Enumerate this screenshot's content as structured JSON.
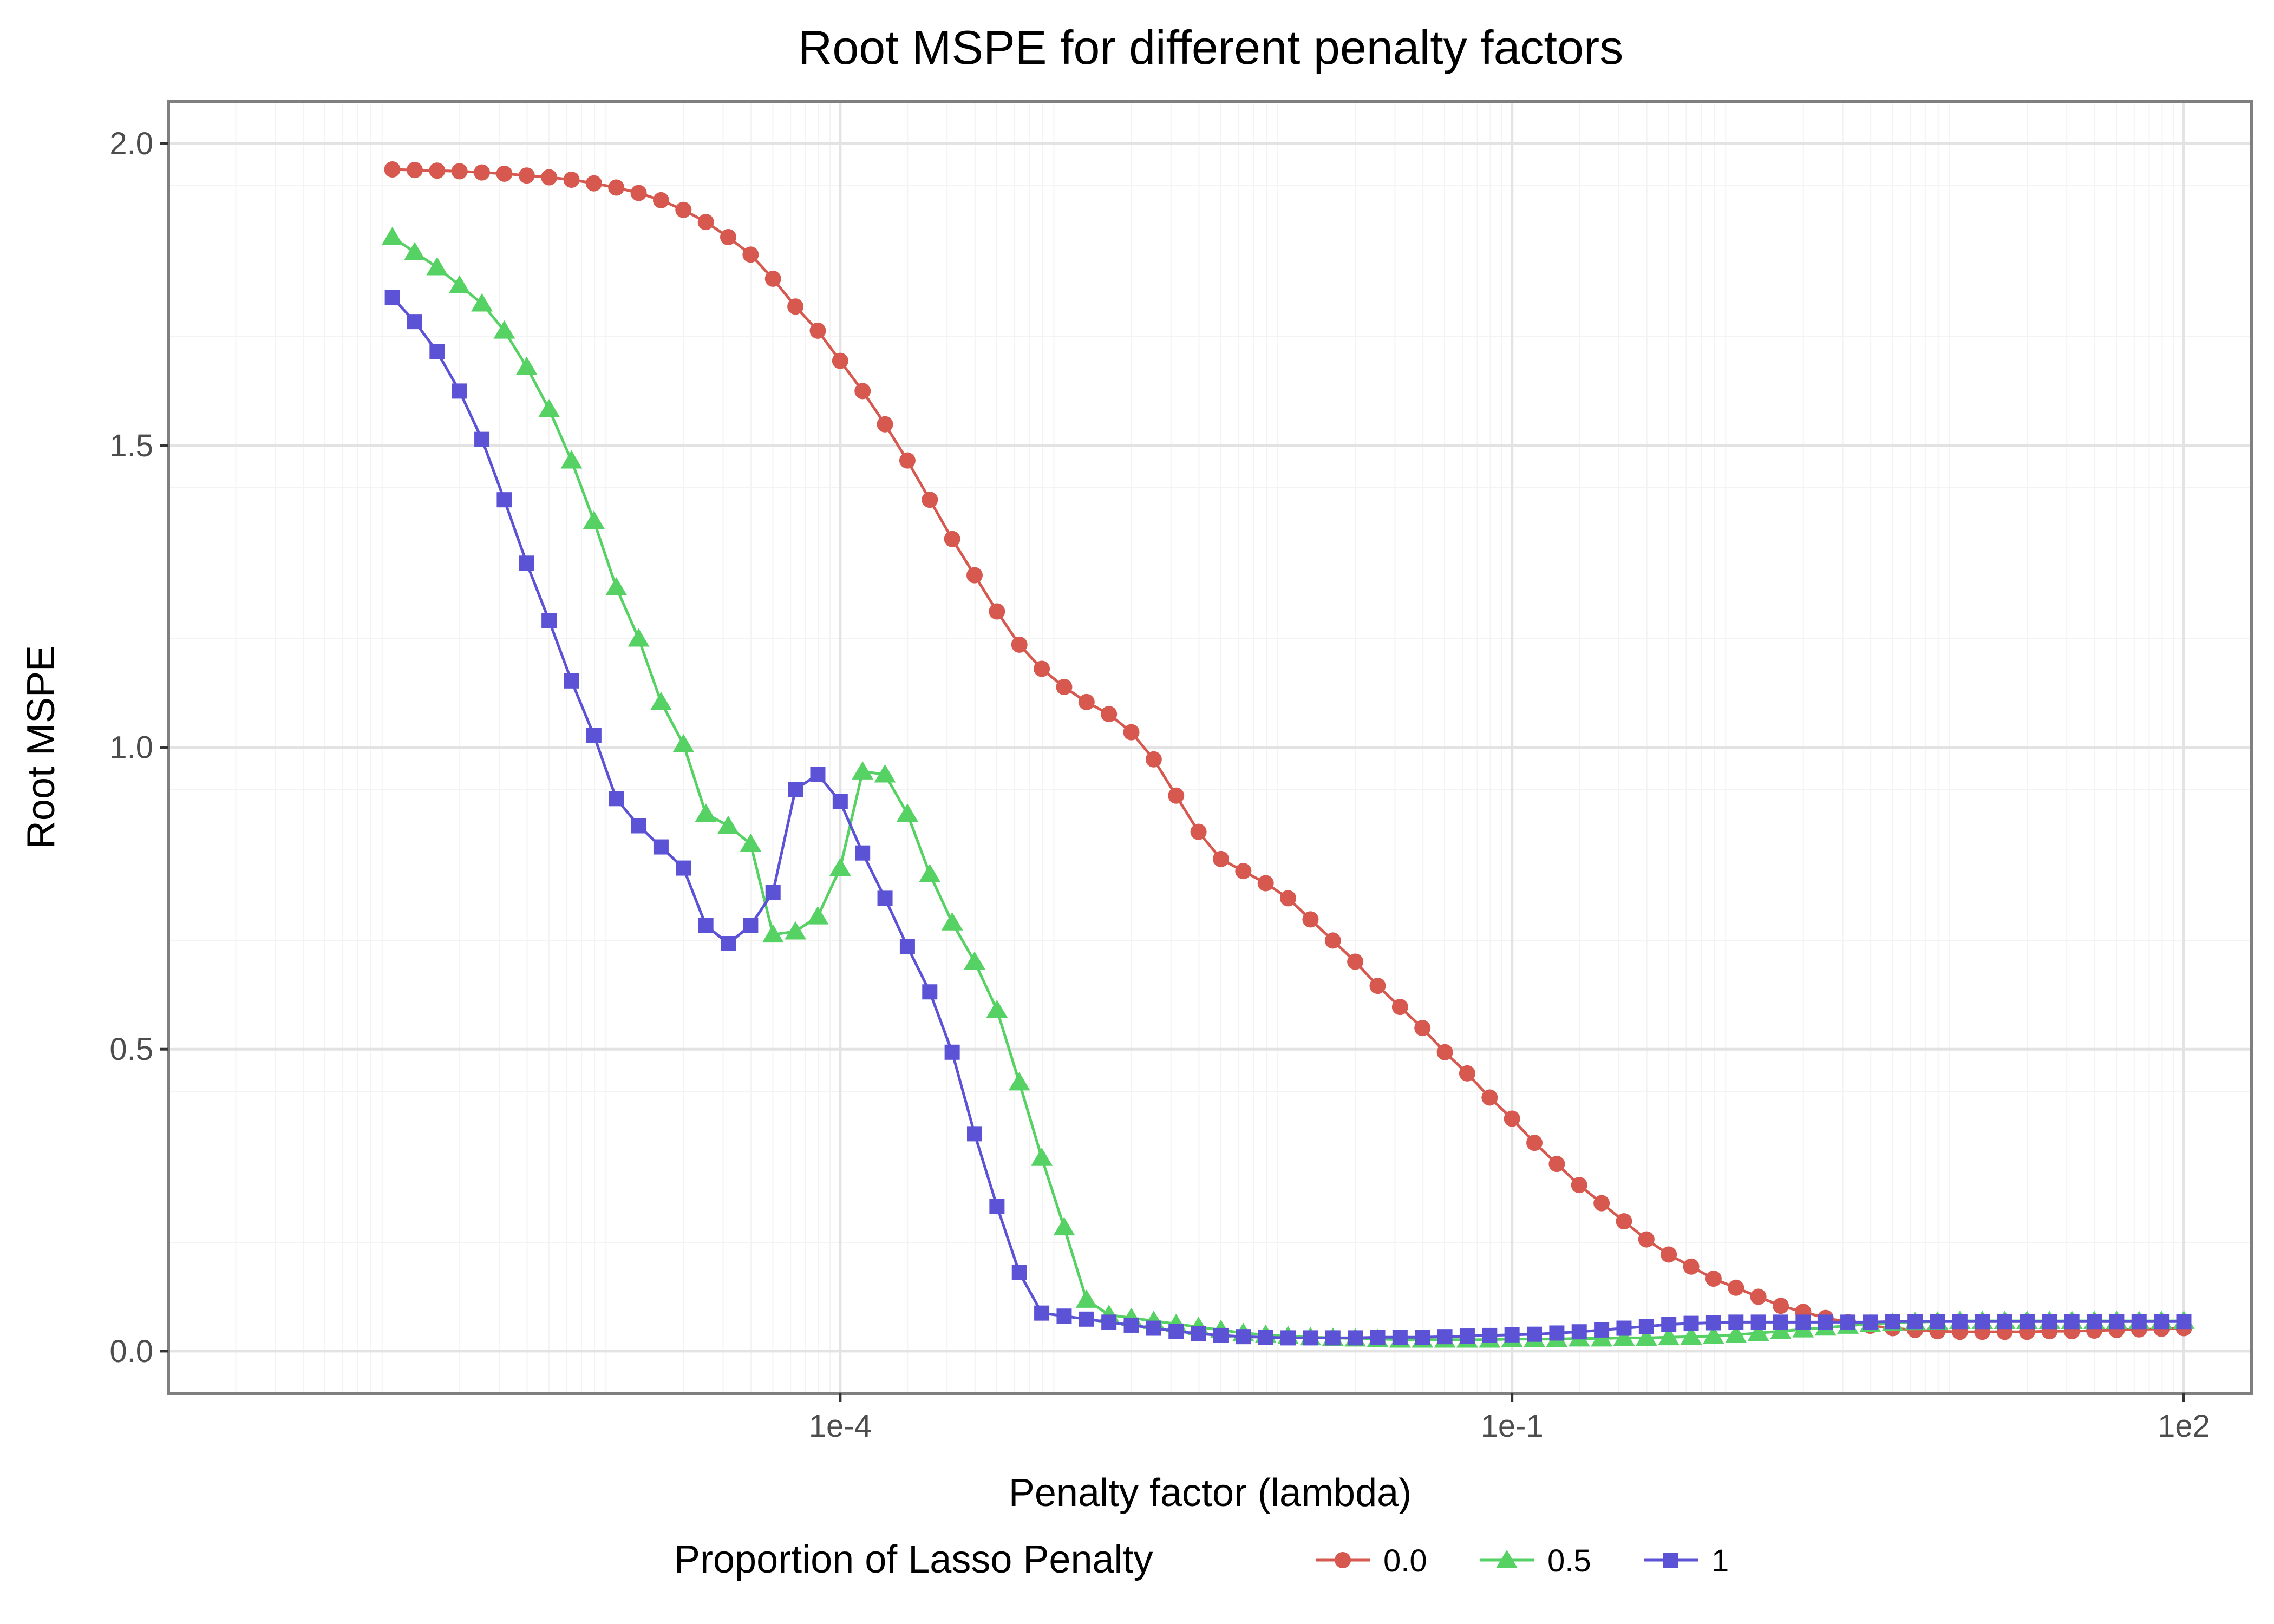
{
  "chart_data": {
    "type": "line",
    "title": "Root MSPE for different penalty factors",
    "xlabel": "Penalty factor (lambda)",
    "ylabel": "Root MSPE",
    "x_scale": "log10",
    "xlim": [
      1e-07,
      200
    ],
    "ylim": [
      -0.07,
      2.07
    ],
    "x_ticks": [
      0.0001,
      0.1,
      100
    ],
    "x_tick_labels": [
      "1e-4",
      "1e-1",
      "1e2"
    ],
    "y_ticks": [
      0,
      0.5,
      1,
      1.5,
      2
    ],
    "y_tick_labels": [
      "0.0",
      "0.5",
      "1.0",
      "1.5",
      "2.0"
    ],
    "grid": true,
    "legend": {
      "title": "Proportion of Lasso Penalty",
      "position": "bottom",
      "entries": [
        "0.0",
        "0.5",
        "1"
      ]
    },
    "x": [
      1e-06,
      1.25893e-06,
      1.58489e-06,
      1.99526e-06,
      2.51189e-06,
      3.16228e-06,
      3.98107e-06,
      5.01187e-06,
      6.30957e-06,
      7.94328e-06,
      1e-05,
      1.25893e-05,
      1.58489e-05,
      1.99526e-05,
      2.51189e-05,
      3.16228e-05,
      3.98107e-05,
      5.01187e-05,
      6.30957e-05,
      7.94328e-05,
      0.0001,
      0.000125893,
      0.000158489,
      0.000199526,
      0.000251189,
      0.000316228,
      0.000398107,
      0.000501187,
      0.000630957,
      0.000794328,
      0.001,
      0.00125893,
      0.00158489,
      0.00199526,
      0.00251189,
      0.00316228,
      0.00398107,
      0.00501187,
      0.00630957,
      0.00794328,
      0.01,
      0.0125893,
      0.0158489,
      0.0199526,
      0.0251189,
      0.0316228,
      0.0398107,
      0.0501187,
      0.0630957,
      0.0794328,
      0.1,
      0.125893,
      0.158489,
      0.199526,
      0.251189,
      0.316228,
      0.398107,
      0.501187,
      0.630957,
      0.794328,
      1,
      1.25893,
      1.58489,
      1.99526,
      2.51189,
      3.16228,
      3.98107,
      5.01187,
      6.30957,
      7.94328,
      10,
      12.5893,
      15.8489,
      19.9526,
      25.1189,
      31.6228,
      39.8107,
      50.1187,
      63.0957,
      79.4328,
      100
    ],
    "series": [
      {
        "name": "0.0",
        "color": "#d6584f",
        "marker": "circle",
        "values": [
          1.957,
          1.956,
          1.955,
          1.954,
          1.952,
          1.95,
          1.947,
          1.944,
          1.94,
          1.934,
          1.927,
          1.918,
          1.906,
          1.89,
          1.87,
          1.845,
          1.816,
          1.776,
          1.73,
          1.69,
          1.64,
          1.59,
          1.535,
          1.475,
          1.41,
          1.345,
          1.285,
          1.225,
          1.17,
          1.13,
          1.1,
          1.075,
          1.055,
          1.025,
          0.98,
          0.92,
          0.86,
          0.815,
          0.795,
          0.775,
          0.75,
          0.715,
          0.68,
          0.645,
          0.605,
          0.57,
          0.535,
          0.495,
          0.46,
          0.42,
          0.385,
          0.345,
          0.31,
          0.275,
          0.245,
          0.215,
          0.185,
          0.16,
          0.14,
          0.12,
          0.105,
          0.09,
          0.075,
          0.065,
          0.055,
          0.048,
          0.042,
          0.038,
          0.035,
          0.033,
          0.032,
          0.032,
          0.032,
          0.032,
          0.033,
          0.033,
          0.034,
          0.035,
          0.036,
          0.037,
          0.038
        ]
      },
      {
        "name": "0.5",
        "color": "#56d163",
        "marker": "triangle",
        "values": [
          1.845,
          1.82,
          1.795,
          1.765,
          1.735,
          1.69,
          1.63,
          1.56,
          1.475,
          1.375,
          1.265,
          1.18,
          1.075,
          1.005,
          0.89,
          0.87,
          0.84,
          0.69,
          0.695,
          0.72,
          0.8,
          0.96,
          0.955,
          0.89,
          0.79,
          0.71,
          0.645,
          0.565,
          0.445,
          0.32,
          0.205,
          0.085,
          0.06,
          0.055,
          0.05,
          0.045,
          0.04,
          0.035,
          0.03,
          0.027,
          0.025,
          0.023,
          0.022,
          0.021,
          0.02,
          0.019,
          0.019,
          0.019,
          0.019,
          0.019,
          0.02,
          0.02,
          0.02,
          0.021,
          0.021,
          0.022,
          0.022,
          0.023,
          0.024,
          0.025,
          0.027,
          0.03,
          0.033,
          0.036,
          0.039,
          0.042,
          0.045,
          0.047,
          0.048,
          0.049,
          0.05,
          0.05,
          0.05,
          0.05,
          0.05,
          0.05,
          0.05,
          0.05,
          0.05,
          0.05,
          0.05
        ]
      },
      {
        "name": "1",
        "color": "#5b52d6",
        "marker": "square",
        "values": [
          1.745,
          1.705,
          1.655,
          1.59,
          1.51,
          1.41,
          1.305,
          1.21,
          1.11,
          1.02,
          0.915,
          0.87,
          0.835,
          0.8,
          0.705,
          0.675,
          0.705,
          0.76,
          0.93,
          0.955,
          0.91,
          0.825,
          0.75,
          0.67,
          0.595,
          0.495,
          0.36,
          0.24,
          0.13,
          0.063,
          0.058,
          0.053,
          0.048,
          0.043,
          0.038,
          0.033,
          0.029,
          0.026,
          0.024,
          0.023,
          0.022,
          0.022,
          0.022,
          0.022,
          0.023,
          0.023,
          0.023,
          0.024,
          0.025,
          0.026,
          0.027,
          0.028,
          0.03,
          0.032,
          0.035,
          0.038,
          0.041,
          0.044,
          0.046,
          0.047,
          0.048,
          0.048,
          0.048,
          0.048,
          0.048,
          0.048,
          0.048,
          0.049,
          0.049,
          0.049,
          0.049,
          0.049,
          0.049,
          0.049,
          0.049,
          0.049,
          0.049,
          0.049,
          0.049,
          0.049,
          0.049
        ]
      }
    ]
  },
  "style": {
    "panel_border_color": "#7f7f7f",
    "major_grid_color": "#e3e3e3",
    "minor_grid_color": "#f3f3f3",
    "tick_text_color": "#4d4d4d"
  }
}
